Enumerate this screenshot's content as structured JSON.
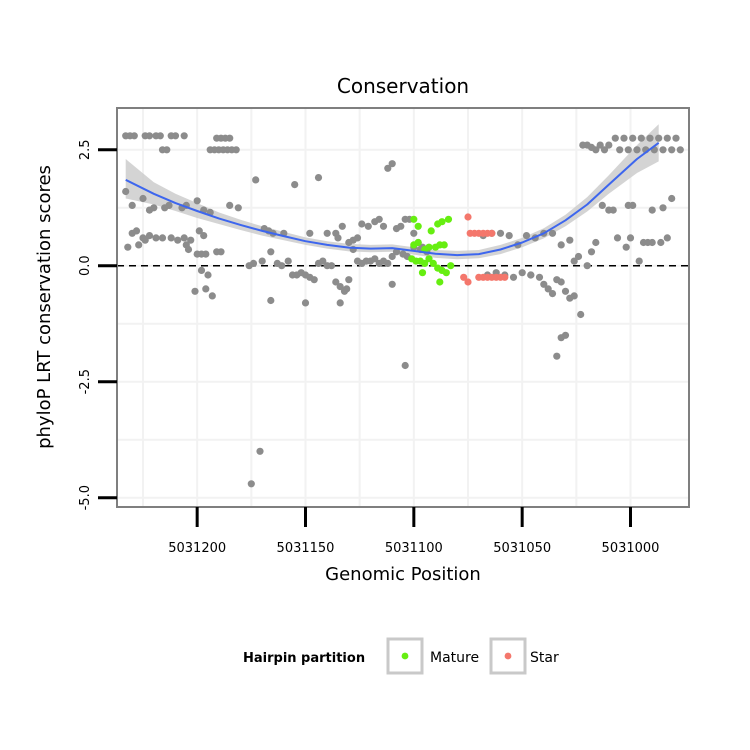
{
  "chart_data": {
    "type": "scatter",
    "title": "Conservation",
    "xlabel": "Genomic Position",
    "ylabel": "phyloP LRT conservation scores",
    "x_reversed": true,
    "xlim": [
      5031237,
      5030973
    ],
    "ylim": [
      -5.2,
      3.4
    ],
    "x_ticks": [
      5031200,
      5031150,
      5031100,
      5031050,
      5031000
    ],
    "x_tick_labels": [
      "5031200",
      "5031150",
      "5031100",
      "5031050",
      "5031000"
    ],
    "y_ticks": [
      -5.0,
      -2.5,
      0.0,
      2.5
    ],
    "y_tick_labels": [
      "-5.0",
      "-2.5",
      "0.0",
      "2.5"
    ],
    "reference_line": {
      "y": 0,
      "style": "dashed"
    },
    "legend": {
      "title": "Hairpin partition",
      "position": "bottom",
      "entries": [
        {
          "label": "Mature",
          "color": "#66ee11"
        },
        {
          "label": "Star",
          "color": "#f4776c"
        }
      ]
    },
    "colors": {
      "other": "#8c8c8c",
      "mature": "#66ee11",
      "star": "#f4776c",
      "smooth": "#3d66ee",
      "band": "#cccccc"
    },
    "smooth": {
      "x": [
        5031233,
        5031220,
        5031210,
        5031200,
        5031190,
        5031180,
        5031170,
        5031160,
        5031150,
        5031140,
        5031130,
        5031120,
        5031110,
        5031100,
        5031090,
        5031080,
        5031070,
        5031060,
        5031050,
        5031040,
        5031030,
        5031020,
        5031010,
        5030997,
        5030987
      ],
      "y": [
        1.85,
        1.55,
        1.35,
        1.18,
        1.02,
        0.88,
        0.75,
        0.64,
        0.53,
        0.45,
        0.39,
        0.37,
        0.38,
        0.32,
        0.26,
        0.23,
        0.25,
        0.35,
        0.5,
        0.7,
        0.98,
        1.32,
        1.75,
        2.3,
        2.65
      ],
      "lower": [
        1.45,
        1.32,
        1.18,
        1.03,
        0.9,
        0.77,
        0.65,
        0.55,
        0.45,
        0.37,
        0.31,
        0.29,
        0.3,
        0.24,
        0.17,
        0.14,
        0.16,
        0.25,
        0.4,
        0.59,
        0.85,
        1.17,
        1.55,
        2.0,
        2.25
      ],
      "upper": [
        2.3,
        1.8,
        1.55,
        1.35,
        1.15,
        0.99,
        0.85,
        0.73,
        0.61,
        0.53,
        0.47,
        0.45,
        0.46,
        0.4,
        0.34,
        0.32,
        0.34,
        0.45,
        0.6,
        0.81,
        1.1,
        1.48,
        1.95,
        2.6,
        3.05
      ]
    },
    "series": [
      {
        "name": "Other",
        "points": [
          [
            5031233,
            2.8
          ],
          [
            5031231,
            2.8
          ],
          [
            5031229,
            2.8
          ],
          [
            5031224,
            2.8
          ],
          [
            5031222,
            2.8
          ],
          [
            5031219,
            2.8
          ],
          [
            5031217,
            2.8
          ],
          [
            5031212,
            2.8
          ],
          [
            5031210,
            2.8
          ],
          [
            5031206,
            2.8
          ],
          [
            5031216,
            2.5
          ],
          [
            5031214,
            2.5
          ],
          [
            5031191,
            2.75
          ],
          [
            5031189,
            2.75
          ],
          [
            5031187,
            2.75
          ],
          [
            5031185,
            2.75
          ],
          [
            5031194,
            2.5
          ],
          [
            5031192,
            2.5
          ],
          [
            5031190,
            2.5
          ],
          [
            5031188,
            2.5
          ],
          [
            5031186,
            2.5
          ],
          [
            5031184,
            2.5
          ],
          [
            5031182,
            2.5
          ],
          [
            5031233,
            1.6
          ],
          [
            5031230,
            1.3
          ],
          [
            5031225,
            1.45
          ],
          [
            5031222,
            1.2
          ],
          [
            5031220,
            1.25
          ],
          [
            5031215,
            1.25
          ],
          [
            5031213,
            1.3
          ],
          [
            5031207,
            1.25
          ],
          [
            5031205,
            1.3
          ],
          [
            5031200,
            1.4
          ],
          [
            5031197,
            1.2
          ],
          [
            5031194,
            1.15
          ],
          [
            5031185,
            1.3
          ],
          [
            5031181,
            1.25
          ],
          [
            5031173,
            1.85
          ],
          [
            5031169,
            0.8
          ],
          [
            5031167,
            0.75
          ],
          [
            5031165,
            0.7
          ],
          [
            5031160,
            0.7
          ],
          [
            5031155,
            1.75
          ],
          [
            5031148,
            0.7
          ],
          [
            5031144,
            1.9
          ],
          [
            5031140,
            0.7
          ],
          [
            5031136,
            0.7
          ],
          [
            5031135,
            0.6
          ],
          [
            5031133,
            0.85
          ],
          [
            5031130,
            0.5
          ],
          [
            5031128,
            0.55
          ],
          [
            5031126,
            0.6
          ],
          [
            5031124,
            0.9
          ],
          [
            5031121,
            0.85
          ],
          [
            5031118,
            0.95
          ],
          [
            5031116,
            1.0
          ],
          [
            5031114,
            0.85
          ],
          [
            5031112,
            2.1
          ],
          [
            5031110,
            2.2
          ],
          [
            5031108,
            0.8
          ],
          [
            5031106,
            0.85
          ],
          [
            5031104,
            1.0
          ],
          [
            5031102,
            1.0
          ],
          [
            5031100,
            0.7
          ],
          [
            5031098,
            0.5
          ],
          [
            5031096,
            0.4
          ],
          [
            5031094,
            0.3
          ],
          [
            5031230,
            0.7
          ],
          [
            5031228,
            0.75
          ],
          [
            5031225,
            0.6
          ],
          [
            5031222,
            0.65
          ],
          [
            5031219,
            0.6
          ],
          [
            5031216,
            0.6
          ],
          [
            5031212,
            0.6
          ],
          [
            5031206,
            0.6
          ],
          [
            5031203,
            0.55
          ],
          [
            5031199,
            0.75
          ],
          [
            5031197,
            0.65
          ],
          [
            5031204,
            0.35
          ],
          [
            5031200,
            0.25
          ],
          [
            5031198,
            0.25
          ],
          [
            5031196,
            0.25
          ],
          [
            5031191,
            0.3
          ],
          [
            5031189,
            0.3
          ],
          [
            5031232,
            0.4
          ],
          [
            5031227,
            0.45
          ],
          [
            5031224,
            0.55
          ],
          [
            5031209,
            0.55
          ],
          [
            5031205,
            0.45
          ],
          [
            5031176,
            0.0
          ],
          [
            5031174,
            0.05
          ],
          [
            5031170,
            0.1
          ],
          [
            5031166,
            0.3
          ],
          [
            5031163,
            0.05
          ],
          [
            5031161,
            0.0
          ],
          [
            5031158,
            0.1
          ],
          [
            5031156,
            -0.2
          ],
          [
            5031154,
            -0.2
          ],
          [
            5031152,
            -0.15
          ],
          [
            5031150,
            -0.2
          ],
          [
            5031148,
            -0.25
          ],
          [
            5031146,
            -0.3
          ],
          [
            5031144,
            0.05
          ],
          [
            5031142,
            0.1
          ],
          [
            5031140,
            0.0
          ],
          [
            5031138,
            0.0
          ],
          [
            5031136,
            -0.35
          ],
          [
            5031134,
            -0.45
          ],
          [
            5031132,
            -0.55
          ],
          [
            5031130,
            -0.3
          ],
          [
            5031128,
            0.35
          ],
          [
            5031126,
            0.1
          ],
          [
            5031124,
            0.05
          ],
          [
            5031122,
            0.1
          ],
          [
            5031120,
            0.1
          ],
          [
            5031118,
            0.15
          ],
          [
            5031116,
            0.05
          ],
          [
            5031114,
            0.1
          ],
          [
            5031112,
            0.05
          ],
          [
            5031110,
            0.2
          ],
          [
            5031108,
            0.3
          ],
          [
            5031105,
            0.25
          ],
          [
            5031103,
            0.2
          ],
          [
            5031100,
            0.4
          ],
          [
            5031097,
            0.35
          ],
          [
            5031198,
            -0.1
          ],
          [
            5031195,
            -0.2
          ],
          [
            5031201,
            -0.55
          ],
          [
            5031196,
            -0.5
          ],
          [
            5031193,
            -0.65
          ],
          [
            5031150,
            -0.8
          ],
          [
            5031166,
            -0.75
          ],
          [
            5031134,
            -0.8
          ],
          [
            5031131,
            -0.5
          ],
          [
            5031175,
            -4.7
          ],
          [
            5031171,
            -4.0
          ],
          [
            5031104,
            -2.15
          ],
          [
            5031110,
            -0.4
          ],
          [
            5031068,
            0.65
          ],
          [
            5031064,
            0.7
          ],
          [
            5031060,
            0.7
          ],
          [
            5031056,
            0.65
          ],
          [
            5031052,
            0.45
          ],
          [
            5031048,
            0.65
          ],
          [
            5031044,
            0.6
          ],
          [
            5031040,
            0.7
          ],
          [
            5031036,
            0.7
          ],
          [
            5031032,
            0.45
          ],
          [
            5031028,
            0.55
          ],
          [
            5031026,
            0.1
          ],
          [
            5031024,
            0.2
          ],
          [
            5031020,
            0.0
          ],
          [
            5031018,
            0.3
          ],
          [
            5031016,
            0.5
          ],
          [
            5031013,
            1.3
          ],
          [
            5031010,
            1.2
          ],
          [
            5031066,
            -0.2
          ],
          [
            5031062,
            -0.15
          ],
          [
            5031058,
            -0.2
          ],
          [
            5031054,
            -0.25
          ],
          [
            5031050,
            -0.15
          ],
          [
            5031046,
            -0.2
          ],
          [
            5031042,
            -0.25
          ],
          [
            5031040,
            -0.4
          ],
          [
            5031038,
            -0.5
          ],
          [
            5031036,
            -0.6
          ],
          [
            5031034,
            -0.3
          ],
          [
            5031032,
            -0.35
          ],
          [
            5031030,
            -0.55
          ],
          [
            5031028,
            -0.7
          ],
          [
            5031026,
            -0.65
          ],
          [
            5031023,
            -1.05
          ],
          [
            5031032,
            -1.55
          ],
          [
            5031030,
            -1.5
          ],
          [
            5031034,
            -1.95
          ],
          [
            5031046,
            -0.2
          ],
          [
            5031022,
            2.6
          ],
          [
            5031020,
            2.6
          ],
          [
            5031018,
            2.55
          ],
          [
            5031016,
            2.5
          ],
          [
            5031014,
            2.6
          ],
          [
            5031012,
            2.5
          ],
          [
            5031010,
            2.6
          ],
          [
            5031007,
            2.75
          ],
          [
            5031005,
            2.5
          ],
          [
            5031003,
            2.75
          ],
          [
            5031001,
            2.5
          ],
          [
            5030999,
            2.75
          ],
          [
            5030997,
            2.5
          ],
          [
            5030995,
            2.75
          ],
          [
            5030993,
            2.5
          ],
          [
            5030991,
            2.75
          ],
          [
            5030989,
            2.5
          ],
          [
            5030987,
            2.75
          ],
          [
            5030985,
            2.5
          ],
          [
            5030983,
            2.75
          ],
          [
            5030981,
            2.5
          ],
          [
            5030979,
            2.75
          ],
          [
            5030977,
            2.5
          ],
          [
            5031008,
            1.2
          ],
          [
            5031001,
            1.3
          ],
          [
            5030999,
            1.3
          ],
          [
            5030990,
            1.2
          ],
          [
            5030985,
            1.25
          ],
          [
            5030981,
            1.45
          ],
          [
            5031006,
            0.6
          ],
          [
            5031002,
            0.4
          ],
          [
            5031000,
            0.6
          ],
          [
            5030992,
            0.5
          ],
          [
            5030990,
            0.5
          ],
          [
            5030986,
            0.5
          ],
          [
            5030983,
            0.6
          ],
          [
            5030996,
            0.1
          ],
          [
            5030994,
            0.5
          ]
        ]
      },
      {
        "name": "Mature",
        "points": [
          [
            5031100,
            1.0
          ],
          [
            5031098,
            0.85
          ],
          [
            5031092,
            0.75
          ],
          [
            5031089,
            0.9
          ],
          [
            5031087,
            0.95
          ],
          [
            5031084,
            1.0
          ],
          [
            5031100,
            0.45
          ],
          [
            5031098,
            0.5
          ],
          [
            5031095,
            0.35
          ],
          [
            5031093,
            0.4
          ],
          [
            5031090,
            0.4
          ],
          [
            5031088,
            0.45
          ],
          [
            5031086,
            0.45
          ],
          [
            5031101,
            0.15
          ],
          [
            5031099,
            0.1
          ],
          [
            5031097,
            0.1
          ],
          [
            5031095,
            0.05
          ],
          [
            5031093,
            0.15
          ],
          [
            5031091,
            0.05
          ],
          [
            5031089,
            -0.05
          ],
          [
            5031087,
            -0.1
          ],
          [
            5031085,
            -0.15
          ],
          [
            5031096,
            -0.15
          ],
          [
            5031088,
            -0.35
          ],
          [
            5031083,
            0.0
          ]
        ]
      },
      {
        "name": "Star",
        "points": [
          [
            5031075,
            1.05
          ],
          [
            5031074,
            0.7
          ],
          [
            5031072,
            0.7
          ],
          [
            5031070,
            0.7
          ],
          [
            5031068,
            0.7
          ],
          [
            5031066,
            0.7
          ],
          [
            5031064,
            0.7
          ],
          [
            5031077,
            -0.25
          ],
          [
            5031075,
            -0.35
          ],
          [
            5031070,
            -0.25
          ],
          [
            5031068,
            -0.25
          ],
          [
            5031066,
            -0.25
          ],
          [
            5031064,
            -0.25
          ],
          [
            5031062,
            -0.25
          ],
          [
            5031060,
            -0.25
          ],
          [
            5031058,
            -0.25
          ]
        ]
      }
    ]
  }
}
